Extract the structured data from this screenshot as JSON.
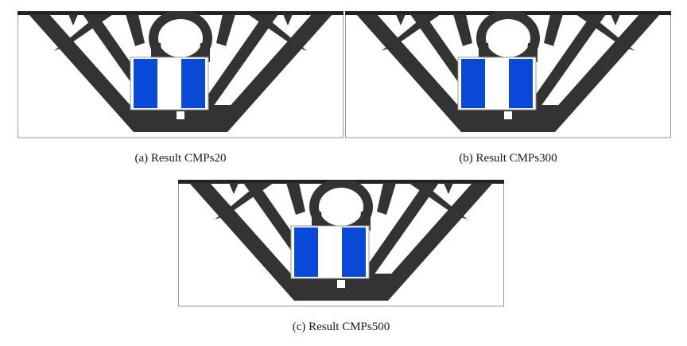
{
  "figures": [
    {
      "id": "a",
      "caption": "(a) Result CMPs20"
    },
    {
      "id": "b",
      "caption": "(b) Result CMPs300"
    },
    {
      "id": "c",
      "caption": "(c) Result CMPs500"
    }
  ],
  "colors": {
    "material": "#333333",
    "component_blue": "#0a49d8",
    "frame": "#9a9a9a",
    "top_bar": "#222222"
  }
}
